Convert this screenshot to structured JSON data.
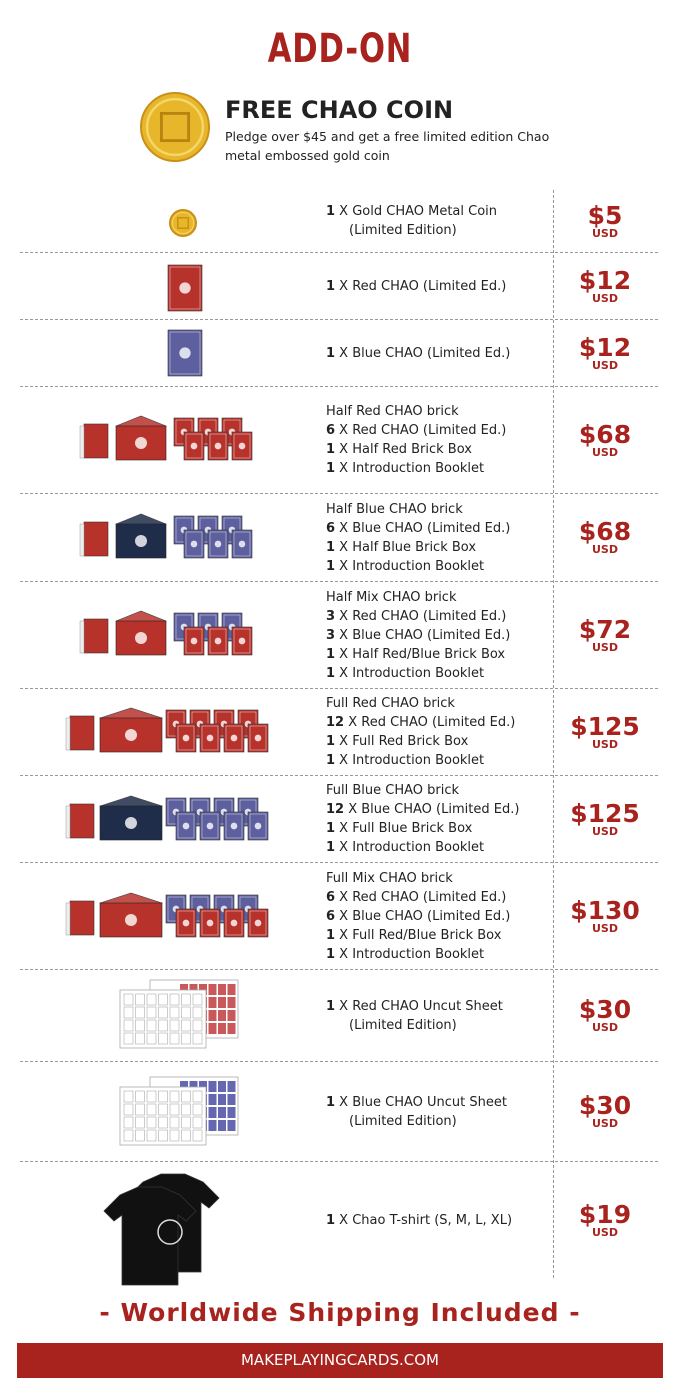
{
  "header": {
    "title": "ADD-ON"
  },
  "free_coin": {
    "title": "FREE CHAO COIN",
    "description": "Pledge over $45 and get a free limited edition Chao metal embossed gold coin"
  },
  "items": [
    {
      "lines": [
        {
          "qty": "1",
          "text": " X Gold CHAO Metal Coin"
        },
        {
          "text": "(Limited Edition)"
        }
      ],
      "price": "$5",
      "currency": "USD"
    },
    {
      "lines": [
        {
          "qty": "1",
          "text": " X Red CHAO (Limited Ed.)"
        }
      ],
      "price": "$12",
      "currency": "USD"
    },
    {
      "lines": [
        {
          "qty": "1",
          "text": " X Blue CHAO (Limited Ed.)"
        }
      ],
      "price": "$12",
      "currency": "USD"
    },
    {
      "lines": [
        {
          "text": "Half Red CHAO brick"
        },
        {
          "qty": "6",
          "text": " X Red CHAO (Limited Ed.)"
        },
        {
          "qty": "1",
          "text": " X Half Red Brick Box"
        },
        {
          "qty": "1",
          "text": " X Introduction Booklet"
        }
      ],
      "price": "$68",
      "currency": "USD"
    },
    {
      "lines": [
        {
          "text": "Half Blue CHAO brick"
        },
        {
          "qty": "6",
          "text": " X Blue CHAO (Limited Ed.)"
        },
        {
          "qty": "1",
          "text": " X Half Blue Brick Box"
        },
        {
          "qty": "1",
          "text": " X Introduction Booklet"
        }
      ],
      "price": "$68",
      "currency": "USD"
    },
    {
      "lines": [
        {
          "text": "Half Mix CHAO brick"
        },
        {
          "qty": "3",
          "text": " X Red CHAO (Limited Ed.)"
        },
        {
          "qty": "3",
          "text": " X Blue CHAO (Limited Ed.)"
        },
        {
          "qty": "1",
          "text": " X Half Red/Blue Brick Box"
        },
        {
          "qty": "1",
          "text": " X Introduction Booklet"
        }
      ],
      "price": "$72",
      "currency": "USD"
    },
    {
      "lines": [
        {
          "text": "Full Red CHAO brick"
        },
        {
          "qty": "12",
          "text": " X Red CHAO (Limited Ed.)"
        },
        {
          "qty": "1",
          "text": " X Full Red Brick Box"
        },
        {
          "qty": "1",
          "text": " X Introduction Booklet"
        }
      ],
      "price": "$125",
      "currency": "USD"
    },
    {
      "lines": [
        {
          "text": "Full Blue CHAO brick"
        },
        {
          "qty": "12",
          "text": " X Blue CHAO (Limited Ed.)"
        },
        {
          "qty": "1",
          "text": " X Full Blue Brick Box"
        },
        {
          "qty": "1",
          "text": " X Introduction Booklet"
        }
      ],
      "price": "$125",
      "currency": "USD"
    },
    {
      "lines": [
        {
          "text": "Full Mix CHAO brick"
        },
        {
          "qty": "6",
          "text": " X Red CHAO (Limited Ed.)"
        },
        {
          "qty": "6",
          "text": " X Blue CHAO (Limited Ed.)"
        },
        {
          "qty": "1",
          "text": " X Full Red/Blue Brick Box"
        },
        {
          "qty": "1",
          "text": " X Introduction Booklet"
        }
      ],
      "price": "$130",
      "currency": "USD"
    },
    {
      "lines": [
        {
          "qty": "1",
          "text": " X Red CHAO Uncut Sheet"
        },
        {
          "text": "(Limited Edition)"
        }
      ],
      "price": "$30",
      "currency": "USD"
    },
    {
      "lines": [
        {
          "qty": "1",
          "text": " X Blue CHAO Uncut Sheet"
        },
        {
          "text": "(Limited Edition)"
        }
      ],
      "price": "$30",
      "currency": "USD"
    },
    {
      "lines": [
        {
          "qty": "1",
          "text": " X Chao T-shirt (S, M, L, XL)"
        }
      ],
      "price": "$19",
      "currency": "USD"
    }
  ],
  "footer": {
    "shipping": "- Worldwide Shipping Included -",
    "site": "MAKEPLAYINGCARDS.COM"
  }
}
